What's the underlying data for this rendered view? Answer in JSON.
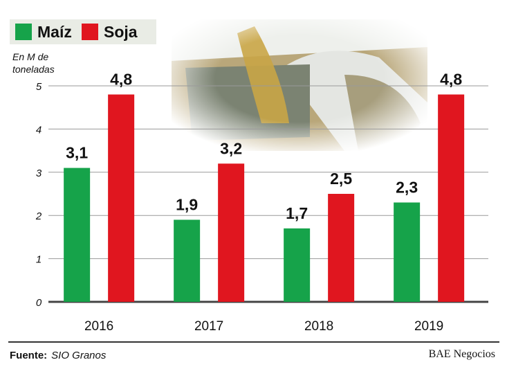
{
  "chart_data": {
    "type": "bar",
    "categories": [
      "2016",
      "2017",
      "2018",
      "2019"
    ],
    "series": [
      {
        "name": "Maíz",
        "values": [
          3.1,
          1.9,
          1.7,
          2.3
        ],
        "labels": [
          "3,1",
          "1,9",
          "1,7",
          "2,3"
        ],
        "color": "#16a34a"
      },
      {
        "name": "Soja",
        "values": [
          4.8,
          3.2,
          2.5,
          4.8
        ],
        "labels": [
          "4,8",
          "3,2",
          "2,5",
          "4,8"
        ],
        "color": "#e0161f"
      }
    ],
    "ylabel": "En M de toneladas",
    "ylim": [
      0,
      5
    ],
    "yticks": [
      "0",
      "1",
      "2",
      "3",
      "4",
      "5"
    ],
    "grid": true,
    "legend": "top-left"
  },
  "source": {
    "label": "Fuente:",
    "value": "SIO Granos"
  },
  "credit": "BAE Negocios"
}
